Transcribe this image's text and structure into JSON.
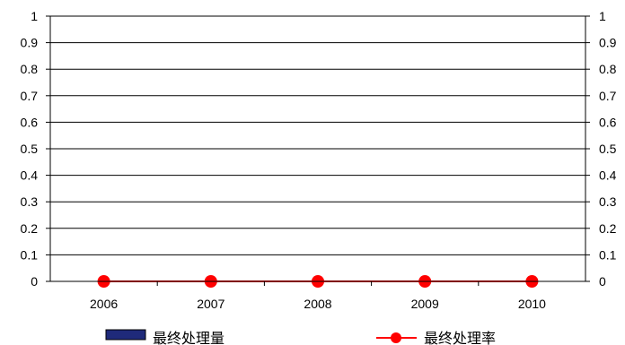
{
  "chart_data": {
    "type": "bar+line",
    "categories": [
      "2006",
      "2007",
      "2008",
      "2009",
      "2010"
    ],
    "series": [
      {
        "name": "最终处理量",
        "type": "bar",
        "axis": "left",
        "color": "#1f2a7a",
        "values": [
          0,
          0,
          0,
          0,
          0
        ]
      },
      {
        "name": "最终处理率",
        "type": "line",
        "axis": "right",
        "color": "#ff0000",
        "marker": "circle",
        "values": [
          0,
          0,
          0,
          0,
          0
        ]
      }
    ],
    "y_left": {
      "min": 0,
      "max": 1,
      "ticks": [
        "0",
        "0.1",
        "0.2",
        "0.3",
        "0.4",
        "0.5",
        "0.6",
        "0.7",
        "0.8",
        "0.9",
        "1"
      ]
    },
    "y_right": {
      "min": 0,
      "max": 1,
      "ticks": [
        "0",
        "0.1",
        "0.2",
        "0.3",
        "0.4",
        "0.5",
        "0.6",
        "0.7",
        "0.8",
        "0.9",
        "1"
      ]
    },
    "grid": true,
    "legend_position": "bottom"
  }
}
